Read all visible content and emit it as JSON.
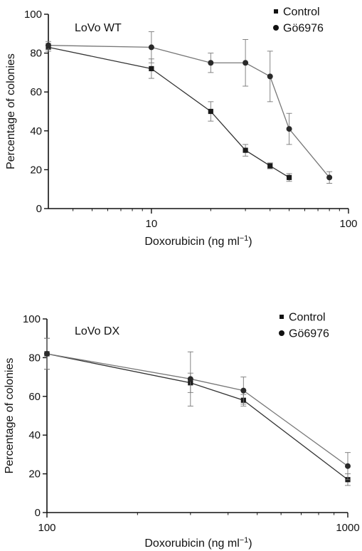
{
  "chart_data": [
    {
      "type": "line",
      "title": "LoVo WT",
      "xlabel": "Doxorubicin (ng ml",
      "xlabel_sup": "−1",
      "xlabel_end": ")",
      "ylabel": "Percentage of colonies",
      "xscale": "log",
      "xlim": [
        3,
        100
      ],
      "ylim": [
        0,
        100
      ],
      "xticks": [
        10,
        100
      ],
      "xtick_labels": [
        "10",
        "100"
      ],
      "yticks": [
        0,
        20,
        40,
        60,
        80,
        100
      ],
      "ytick_labels": [
        "0",
        "20",
        "40",
        "60",
        "80",
        "100"
      ],
      "legend_placement": "top-right",
      "series": [
        {
          "name": "Control",
          "marker": "square",
          "x": [
            3,
            10,
            20,
            30,
            40,
            50
          ],
          "y": [
            83,
            72,
            50,
            30,
            22,
            16
          ],
          "err": [
            2,
            5,
            5,
            3,
            1.5,
            2
          ]
        },
        {
          "name": "Gö6976",
          "marker": "circle",
          "x": [
            3,
            10,
            20,
            30,
            40,
            50,
            80
          ],
          "y": [
            84,
            83,
            75,
            75,
            68,
            41,
            16
          ],
          "err": [
            2,
            8,
            5,
            12,
            13,
            8,
            3
          ]
        }
      ]
    },
    {
      "type": "line",
      "title": "LoVo DX",
      "xlabel": "Doxorubicin (ng ml",
      "xlabel_sup": "−1",
      "xlabel_end": ")",
      "ylabel": "Percentage of colonies",
      "xscale": "log",
      "xlim": [
        100,
        1000
      ],
      "ylim": [
        0,
        100
      ],
      "xticks": [
        100,
        1000
      ],
      "xtick_labels": [
        "100",
        "1000"
      ],
      "yticks": [
        0,
        20,
        40,
        60,
        80,
        100
      ],
      "ytick_labels": [
        "0",
        "20",
        "40",
        "60",
        "80",
        "100"
      ],
      "legend_placement": "top-right",
      "series": [
        {
          "name": "Control",
          "marker": "square",
          "x": [
            100,
            300,
            450,
            1000
          ],
          "y": [
            82,
            67,
            58,
            17
          ],
          "err": [
            8,
            5,
            3,
            3
          ]
        },
        {
          "name": "Gö6976",
          "marker": "circle",
          "x": [
            100,
            300,
            450,
            1000
          ],
          "y": [
            82,
            69,
            63,
            24
          ],
          "err": [
            8,
            14,
            7,
            7
          ]
        }
      ]
    }
  ]
}
